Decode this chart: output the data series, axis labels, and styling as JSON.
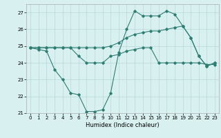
{
  "title": "",
  "xlabel": "Humidex (Indice chaleur)",
  "bg_color": "#d8f0f0",
  "grid_color": "#b8d8d8",
  "line_color": "#2e7d72",
  "xlim": [
    -0.5,
    23.5
  ],
  "ylim": [
    21,
    27.5
  ],
  "yticks": [
    21,
    22,
    23,
    24,
    25,
    26,
    27
  ],
  "xticks": [
    0,
    1,
    2,
    3,
    4,
    5,
    6,
    7,
    8,
    9,
    10,
    11,
    12,
    13,
    14,
    15,
    16,
    17,
    18,
    19,
    20,
    21,
    22,
    23
  ],
  "series": [
    {
      "x": [
        0,
        1,
        2,
        3,
        4,
        5,
        6,
        7,
        8,
        9,
        10,
        11,
        12,
        13,
        14,
        15,
        16,
        17,
        18,
        19,
        20,
        21,
        22,
        23
      ],
      "y": [
        24.9,
        24.8,
        24.7,
        23.6,
        23.0,
        22.2,
        22.1,
        21.1,
        21.1,
        21.2,
        22.2,
        24.6,
        26.0,
        27.1,
        26.8,
        26.8,
        26.8,
        27.1,
        26.9,
        26.2,
        25.5,
        24.4,
        23.8,
        24.0
      ]
    },
    {
      "x": [
        0,
        1,
        2,
        3,
        4,
        5,
        6,
        7,
        8,
        9,
        10,
        11,
        12,
        13,
        14,
        15,
        16,
        17,
        18,
        19,
        20,
        21,
        22,
        23
      ],
      "y": [
        24.9,
        24.9,
        24.9,
        24.9,
        24.9,
        24.9,
        24.4,
        24.0,
        24.0,
        24.0,
        24.4,
        24.5,
        24.7,
        24.8,
        24.9,
        24.9,
        24.0,
        24.0,
        24.0,
        24.0,
        24.0,
        24.0,
        23.9,
        23.9
      ]
    },
    {
      "x": [
        0,
        1,
        2,
        3,
        4,
        5,
        6,
        7,
        8,
        9,
        10,
        11,
        12,
        13,
        14,
        15,
        16,
        17,
        18,
        19,
        20,
        21,
        22,
        23
      ],
      "y": [
        24.9,
        24.9,
        24.9,
        24.9,
        24.9,
        24.9,
        24.9,
        24.9,
        24.9,
        24.9,
        25.0,
        25.2,
        25.5,
        25.7,
        25.8,
        25.9,
        25.9,
        26.0,
        26.1,
        26.2,
        25.5,
        24.4,
        23.8,
        24.0
      ]
    }
  ]
}
